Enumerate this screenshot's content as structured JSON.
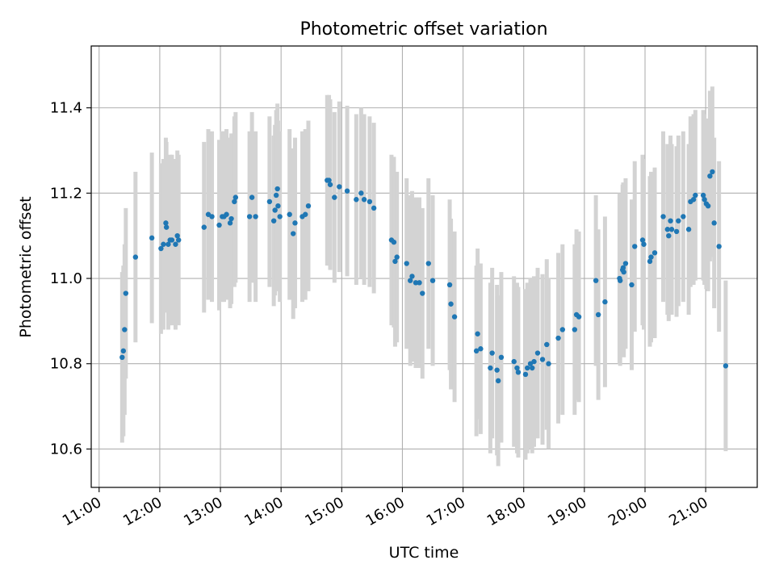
{
  "chart_data": {
    "type": "scatter",
    "title": "Photometric offset variation",
    "xlabel": "UTC time",
    "ylabel": "Photometric offset",
    "x_unit": "UTC hour of day",
    "xlim": [
      10.87,
      21.85
    ],
    "ylim": [
      10.51,
      11.545
    ],
    "x_ticks": [
      {
        "value": 11,
        "label": "11:00"
      },
      {
        "value": 12,
        "label": "12:00"
      },
      {
        "value": 13,
        "label": "13:00"
      },
      {
        "value": 14,
        "label": "14:00"
      },
      {
        "value": 15,
        "label": "15:00"
      },
      {
        "value": 16,
        "label": "16:00"
      },
      {
        "value": 17,
        "label": "17:00"
      },
      {
        "value": 18,
        "label": "18:00"
      },
      {
        "value": 19,
        "label": "19:00"
      },
      {
        "value": 20,
        "label": "20:00"
      },
      {
        "value": 21,
        "label": "21:00"
      }
    ],
    "y_ticks": [
      {
        "value": 10.6,
        "label": "10.6"
      },
      {
        "value": 10.8,
        "label": "10.8"
      },
      {
        "value": 11.0,
        "label": "11.0"
      },
      {
        "value": 11.2,
        "label": "11.2"
      },
      {
        "value": 11.4,
        "label": "11.4"
      }
    ],
    "grid": true,
    "colors": {
      "marker": "#1f77b4",
      "errorbar": "#d3d3d3",
      "grid": "#b0b0b0"
    },
    "error_half_width": 0.2,
    "points": [
      [
        11.38,
        10.815
      ],
      [
        11.4,
        10.83
      ],
      [
        11.42,
        10.88
      ],
      [
        11.44,
        10.965
      ],
      [
        11.6,
        11.05
      ],
      [
        11.87,
        11.095
      ],
      [
        12.02,
        11.07
      ],
      [
        12.06,
        11.08
      ],
      [
        12.1,
        11.13
      ],
      [
        12.11,
        11.12
      ],
      [
        12.14,
        11.08
      ],
      [
        12.17,
        11.09
      ],
      [
        12.2,
        11.09
      ],
      [
        12.26,
        11.08
      ],
      [
        12.29,
        11.1
      ],
      [
        12.31,
        11.09
      ],
      [
        12.73,
        11.12
      ],
      [
        12.8,
        11.15
      ],
      [
        12.86,
        11.145
      ],
      [
        12.98,
        11.125
      ],
      [
        13.03,
        11.145
      ],
      [
        13.06,
        11.145
      ],
      [
        13.1,
        11.15
      ],
      [
        13.16,
        11.13
      ],
      [
        13.18,
        11.14
      ],
      [
        13.23,
        11.18
      ],
      [
        13.25,
        11.19
      ],
      [
        13.48,
        11.145
      ],
      [
        13.52,
        11.19
      ],
      [
        13.58,
        11.145
      ],
      [
        13.81,
        11.18
      ],
      [
        13.88,
        11.135
      ],
      [
        13.9,
        11.16
      ],
      [
        13.92,
        11.195
      ],
      [
        13.94,
        11.21
      ],
      [
        13.95,
        11.17
      ],
      [
        13.98,
        11.145
      ],
      [
        14.14,
        11.15
      ],
      [
        14.2,
        11.105
      ],
      [
        14.23,
        11.13
      ],
      [
        14.35,
        11.145
      ],
      [
        14.4,
        11.15
      ],
      [
        14.45,
        11.17
      ],
      [
        14.76,
        11.23
      ],
      [
        14.79,
        11.23
      ],
      [
        14.81,
        11.22
      ],
      [
        14.88,
        11.19
      ],
      [
        14.96,
        11.215
      ],
      [
        15.09,
        11.205
      ],
      [
        15.24,
        11.185
      ],
      [
        15.32,
        11.2
      ],
      [
        15.37,
        11.185
      ],
      [
        15.46,
        11.18
      ],
      [
        15.53,
        11.165
      ],
      [
        15.82,
        11.09
      ],
      [
        15.86,
        11.085
      ],
      [
        15.88,
        11.04
      ],
      [
        15.91,
        11.05
      ],
      [
        16.07,
        11.035
      ],
      [
        16.13,
        10.995
      ],
      [
        16.16,
        11.005
      ],
      [
        16.22,
        10.99
      ],
      [
        16.28,
        10.99
      ],
      [
        16.33,
        10.965
      ],
      [
        16.43,
        11.035
      ],
      [
        16.5,
        10.995
      ],
      [
        16.78,
        10.985
      ],
      [
        16.8,
        10.94
      ],
      [
        16.86,
        10.91
      ],
      [
        17.22,
        10.83
      ],
      [
        17.24,
        10.87
      ],
      [
        17.29,
        10.835
      ],
      [
        17.45,
        10.79
      ],
      [
        17.48,
        10.825
      ],
      [
        17.56,
        10.785
      ],
      [
        17.58,
        10.76
      ],
      [
        17.63,
        10.815
      ],
      [
        17.84,
        10.805
      ],
      [
        17.89,
        10.79
      ],
      [
        17.91,
        10.78
      ],
      [
        18.03,
        10.775
      ],
      [
        18.06,
        10.79
      ],
      [
        18.11,
        10.8
      ],
      [
        18.14,
        10.79
      ],
      [
        18.17,
        10.805
      ],
      [
        18.23,
        10.825
      ],
      [
        18.31,
        10.81
      ],
      [
        18.38,
        10.845
      ],
      [
        18.41,
        10.8
      ],
      [
        18.57,
        10.86
      ],
      [
        18.64,
        10.88
      ],
      [
        18.84,
        10.88
      ],
      [
        18.87,
        10.915
      ],
      [
        18.91,
        10.91
      ],
      [
        19.19,
        10.995
      ],
      [
        19.23,
        10.915
      ],
      [
        19.34,
        10.945
      ],
      [
        19.58,
        11.0
      ],
      [
        19.59,
        10.995
      ],
      [
        19.63,
        11.02
      ],
      [
        19.64,
        11.025
      ],
      [
        19.65,
        11.015
      ],
      [
        19.68,
        11.035
      ],
      [
        19.78,
        10.985
      ],
      [
        19.83,
        11.075
      ],
      [
        19.96,
        11.09
      ],
      [
        19.98,
        11.08
      ],
      [
        20.08,
        11.04
      ],
      [
        20.1,
        11.05
      ],
      [
        20.16,
        11.06
      ],
      [
        20.3,
        11.145
      ],
      [
        20.37,
        11.115
      ],
      [
        20.39,
        11.1
      ],
      [
        20.42,
        11.135
      ],
      [
        20.44,
        11.115
      ],
      [
        20.52,
        11.11
      ],
      [
        20.55,
        11.135
      ],
      [
        20.63,
        11.145
      ],
      [
        20.72,
        11.115
      ],
      [
        20.75,
        11.18
      ],
      [
        20.8,
        11.185
      ],
      [
        20.83,
        11.195
      ],
      [
        20.96,
        11.195
      ],
      [
        20.98,
        11.185
      ],
      [
        21.01,
        11.175
      ],
      [
        21.04,
        11.17
      ],
      [
        21.07,
        11.24
      ],
      [
        21.11,
        11.25
      ],
      [
        21.14,
        11.13
      ],
      [
        21.22,
        11.075
      ],
      [
        21.33,
        10.795
      ]
    ]
  }
}
